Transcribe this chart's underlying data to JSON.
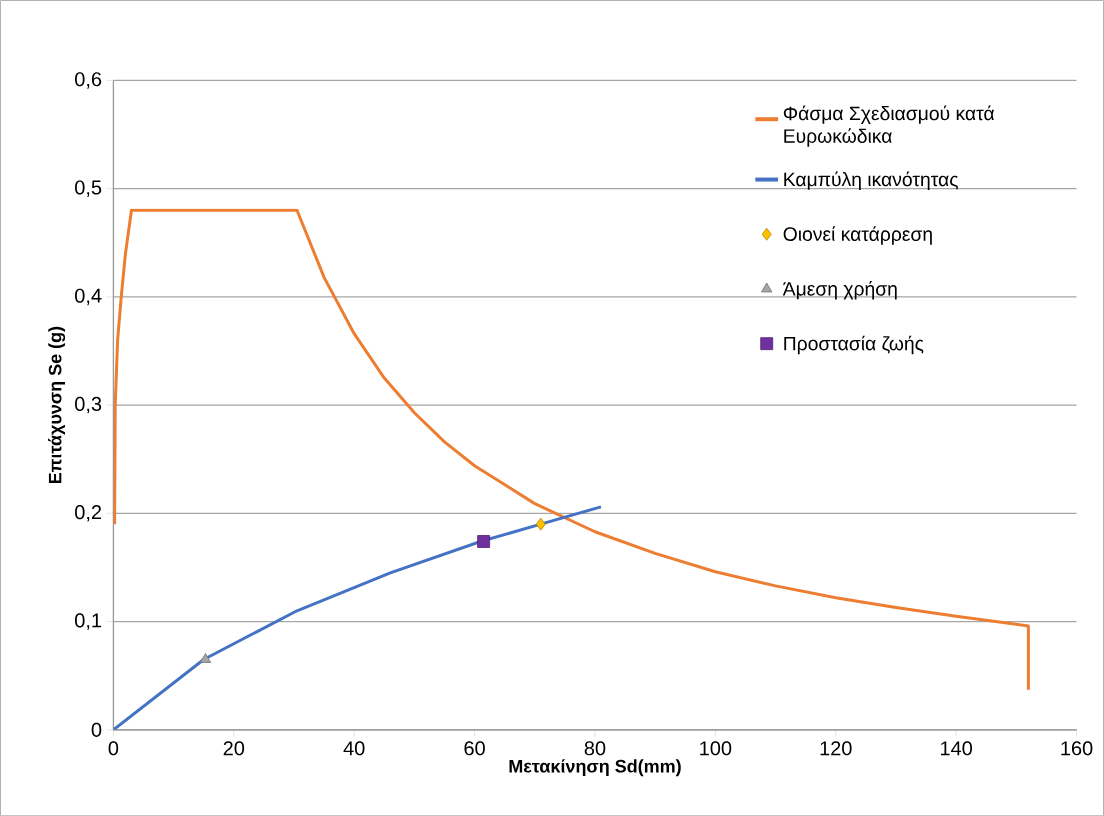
{
  "chart_data": {
    "type": "line",
    "xlabel": "Μετακίνηση Sd(mm)",
    "ylabel": "Επιτάχυνση Se (g)",
    "xlim": [
      0,
      160
    ],
    "xticks": [
      0,
      20,
      40,
      60,
      80,
      100,
      120,
      140,
      160
    ],
    "ylim": [
      0,
      0.6
    ],
    "yticks": [
      0,
      {
        "value": 0.1,
        "label": "0,1"
      },
      {
        "value": 0.2,
        "label": "0,2"
      },
      {
        "value": 0.3,
        "label": "0,3"
      },
      {
        "value": 0.4,
        "label": "0,4"
      },
      {
        "value": 0.5,
        "label": "0,5"
      },
      {
        "value": 0.6,
        "label": "0,6"
      }
    ],
    "grid": "y",
    "legend": "right",
    "series": [
      {
        "name": "Φάσμα Σχεδιασμού κατά Ευρωκώδικα",
        "color": "#ed7d31",
        "x": [
          0.2,
          0.3,
          0.7,
          1.3,
          2,
          3,
          30.5,
          35,
          40,
          45,
          50,
          55,
          60,
          70,
          80,
          90,
          100,
          110,
          120,
          130,
          140,
          152,
          152
        ],
        "values": [
          0.19,
          0.3,
          0.36,
          0.4,
          0.44,
          0.48,
          0.48,
          0.418,
          0.366,
          0.325,
          0.293,
          0.266,
          0.244,
          0.209,
          0.183,
          0.163,
          0.146,
          0.133,
          0.122,
          0.113,
          0.105,
          0.096,
          0.037
        ]
      },
      {
        "name": "Καμπύλη ικανότητας",
        "color": "#4472c4",
        "x": [
          0,
          15,
          30.5,
          46,
          61,
          71,
          81
        ],
        "values": [
          0,
          0.065,
          0.11,
          0.145,
          0.174,
          0.19,
          0.206
        ]
      },
      {
        "name": "Οιονεί κατάρρεση",
        "type": "scatter",
        "marker": "diamond",
        "color": "#ffc000",
        "x": [
          71
        ],
        "values": [
          0.19
        ]
      },
      {
        "name": "Άμεση χρήση",
        "type": "scatter",
        "marker": "triangle",
        "color": "#a5a5a5",
        "x": [
          15.3
        ],
        "values": [
          0.065
        ]
      },
      {
        "name": "Προστασία ζωής",
        "type": "scatter",
        "marker": "square",
        "color": "#7030a0",
        "x": [
          61.5
        ],
        "values": [
          0.174
        ]
      }
    ]
  }
}
